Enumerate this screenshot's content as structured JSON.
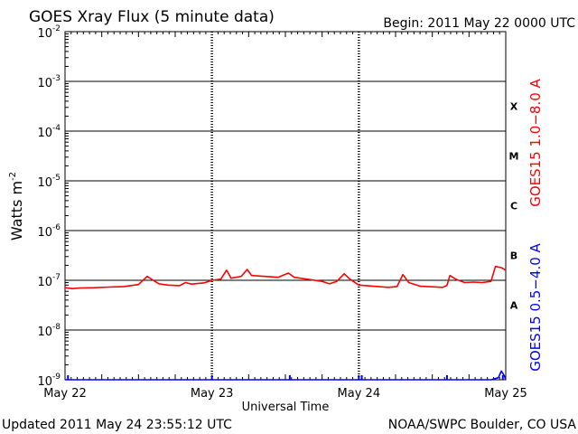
{
  "chart_data": {
    "type": "line",
    "title": "GOES Xray Flux (5 minute data)",
    "begin_text": "Begin:  2011 May 22 0000 UTC",
    "xlabel": "Universal Time",
    "ylabel": "Watts m",
    "ylabel_exponent": "-2",
    "x_ticks": [
      "May 22",
      "May 23",
      "May 24",
      "May 25"
    ],
    "xlim_days": [
      0,
      3
    ],
    "yscale": "log",
    "ylim": [
      1e-09,
      0.01
    ],
    "y_ticks": [
      {
        "base": "10",
        "exp": "-2"
      },
      {
        "base": "10",
        "exp": "-3"
      },
      {
        "base": "10",
        "exp": "-4"
      },
      {
        "base": "10",
        "exp": "-5"
      },
      {
        "base": "10",
        "exp": "-6"
      },
      {
        "base": "10",
        "exp": "-7"
      },
      {
        "base": "10",
        "exp": "-8"
      },
      {
        "base": "10",
        "exp": "-9"
      }
    ],
    "flare_classes": [
      {
        "label": "X",
        "value": 0.0001
      },
      {
        "label": "M",
        "value": 1e-05
      },
      {
        "label": "C",
        "value": 1e-06
      },
      {
        "label": "B",
        "value": 1e-07
      },
      {
        "label": "A",
        "value": 1e-08
      }
    ],
    "grid": "horizontal lines at each decade; dashed vertical day markers",
    "series": [
      {
        "name": "GOES15 1.0−8.0 A",
        "color": "#ff0000",
        "points": [
          [
            0.0,
            7.1e-08
          ],
          [
            0.05,
            6.8e-08
          ],
          [
            0.1,
            7e-08
          ],
          [
            0.2,
            7.1e-08
          ],
          [
            0.3,
            7.3e-08
          ],
          [
            0.4,
            7.5e-08
          ],
          [
            0.5,
            8.2e-08
          ],
          [
            0.56,
            1.2e-07
          ],
          [
            0.6,
            1e-07
          ],
          [
            0.64,
            8.5e-08
          ],
          [
            0.7,
            8e-08
          ],
          [
            0.78,
            7.8e-08
          ],
          [
            0.82,
            9e-08
          ],
          [
            0.86,
            8.4e-08
          ],
          [
            0.95,
            8.9e-08
          ],
          [
            1.0,
            1e-07
          ],
          [
            1.06,
            1.05e-07
          ],
          [
            1.1,
            1.6e-07
          ],
          [
            1.13,
            1.1e-07
          ],
          [
            1.2,
            1.2e-07
          ],
          [
            1.24,
            1.65e-07
          ],
          [
            1.27,
            1.25e-07
          ],
          [
            1.35,
            1.2e-07
          ],
          [
            1.45,
            1.15e-07
          ],
          [
            1.52,
            1.4e-07
          ],
          [
            1.56,
            1.15e-07
          ],
          [
            1.65,
            1.05e-07
          ],
          [
            1.75,
            9.5e-08
          ],
          [
            1.8,
            8.5e-08
          ],
          [
            1.85,
            9.5e-08
          ],
          [
            1.9,
            1.35e-07
          ],
          [
            1.94,
            1.05e-07
          ],
          [
            2.0,
            8e-08
          ],
          [
            2.1,
            7.6e-08
          ],
          [
            2.2,
            7.2e-08
          ],
          [
            2.26,
            7.5e-08
          ],
          [
            2.3,
            1.3e-07
          ],
          [
            2.34,
            9e-08
          ],
          [
            2.42,
            7.6e-08
          ],
          [
            2.5,
            7.4e-08
          ],
          [
            2.57,
            7.2e-08
          ],
          [
            2.6,
            7.9e-08
          ],
          [
            2.62,
            1.25e-07
          ],
          [
            2.66,
            1.05e-07
          ],
          [
            2.72,
            9e-08
          ],
          [
            2.78,
            9.2e-08
          ],
          [
            2.84,
            9e-08
          ],
          [
            2.9,
            9.5e-08
          ],
          [
            2.93,
            1.9e-07
          ],
          [
            2.97,
            1.8e-07
          ],
          [
            3.0,
            1.6e-07
          ]
        ]
      },
      {
        "name": "GOES15 0.5−4.0 A",
        "color": "#0000ff",
        "points": [
          [
            0.0,
            1e-09
          ],
          [
            0.5,
            1e-09
          ],
          [
            1.0,
            1e-09
          ],
          [
            1.5,
            1e-09
          ],
          [
            2.0,
            1e-09
          ],
          [
            2.5,
            1e-09
          ],
          [
            2.9,
            1e-09
          ],
          [
            2.95,
            1.1e-09
          ],
          [
            2.97,
            1.5e-09
          ],
          [
            2.99,
            1.2e-09
          ],
          [
            3.0,
            1e-09
          ]
        ],
        "spikes": [
          0.02,
          1.0,
          1.53,
          2.0,
          2.02,
          2.6,
          2.98
        ]
      }
    ]
  },
  "footer": {
    "updated": "Updated 2011 May 24 23:55:12 UTC",
    "credit": "NOAA/SWPC Boulder, CO USA"
  },
  "colors": {
    "long_channel": "#ff0000",
    "short_channel": "#0000ff",
    "frame": "#000000"
  }
}
